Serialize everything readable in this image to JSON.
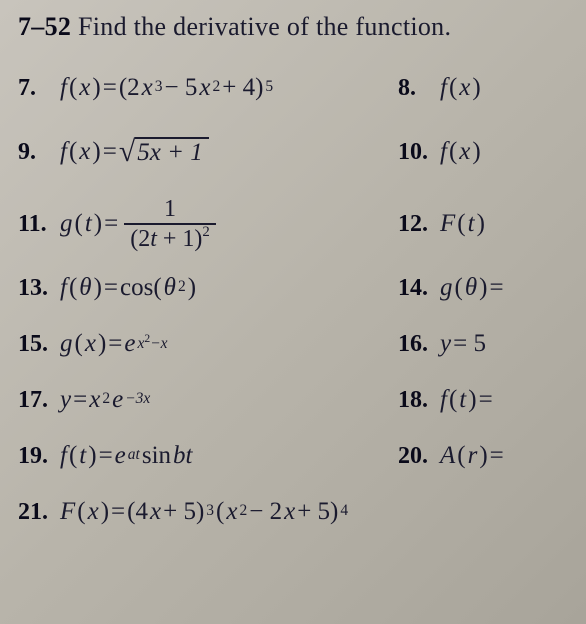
{
  "header": {
    "range": "7–52",
    "instruction": " Find the derivative of the function."
  },
  "problems": {
    "p7": {
      "num": "7.",
      "fn": "f",
      "arg": "x"
    },
    "p8": {
      "num": "8.",
      "fn": "f",
      "arg": "x"
    },
    "p9": {
      "num": "9.",
      "fn": "f",
      "arg": "x"
    },
    "p10": {
      "num": "10.",
      "fn": "f",
      "arg": "x"
    },
    "p11": {
      "num": "11.",
      "fn": "g",
      "arg": "t"
    },
    "p12": {
      "num": "12.",
      "fn": "F",
      "arg": "t"
    },
    "p13": {
      "num": "13.",
      "fn": "f",
      "arg": "θ"
    },
    "p14": {
      "num": "14.",
      "fn": "g",
      "arg": "θ",
      "tail": " ="
    },
    "p15": {
      "num": "15.",
      "fn": "g",
      "arg": "x"
    },
    "p16": {
      "num": "16.",
      "lhs": "y",
      "rhs": " = 5"
    },
    "p17": {
      "num": "17.",
      "lhs": "y"
    },
    "p18": {
      "num": "18.",
      "fn": "f",
      "arg": "t",
      "tail": " ="
    },
    "p19": {
      "num": "19.",
      "fn": "f",
      "arg": "t"
    },
    "p20": {
      "num": "20.",
      "fn": "A",
      "arg": "r",
      "tail": " ="
    },
    "p21": {
      "num": "21.",
      "fn": "F",
      "arg": "x"
    }
  },
  "expr": {
    "p7_body": "(2",
    "p7_x3": "x",
    "p7_mid": " − 5",
    "p7_x2": "x",
    "p7_end": " + 4)",
    "p9_under": "5x + 1",
    "p11_top": "1",
    "p11_bot_a": "(2",
    "p11_bot_t": "t",
    "p11_bot_b": " + 1)",
    "p13_cos": "cos(",
    "p13_th": "θ",
    "p13_close": ")",
    "p15_e": "e",
    "p17_x": "x",
    "p17_e": "e",
    "p19_e": "e",
    "p19_sin": " sin ",
    "p19_bt": "bt",
    "p21_a": "(4",
    "p21_x1": "x",
    "p21_b": " + 5)",
    "p21_c": "(",
    "p21_x2": "x",
    "p21_d": " − 2",
    "p21_x3": "x",
    "p21_e2": " + 5)"
  },
  "sup": {
    "five": "5",
    "two": "2",
    "three": "3",
    "four": "4",
    "x2mx": "x",
    "x2mx_2": "2",
    "x2mx_mx": "−x",
    "m3x": "−3x",
    "at": "at"
  },
  "glyph": {
    "eq": " = ",
    "lp": "(",
    "rp": ")"
  },
  "colors": {
    "text": "#1a1a2e",
    "bold": "#0a0a1a",
    "bg_light": "#c8c4bc",
    "bg_dark": "#a8a49a"
  },
  "fontsize": {
    "header": 26,
    "num": 24,
    "expr": 25
  }
}
